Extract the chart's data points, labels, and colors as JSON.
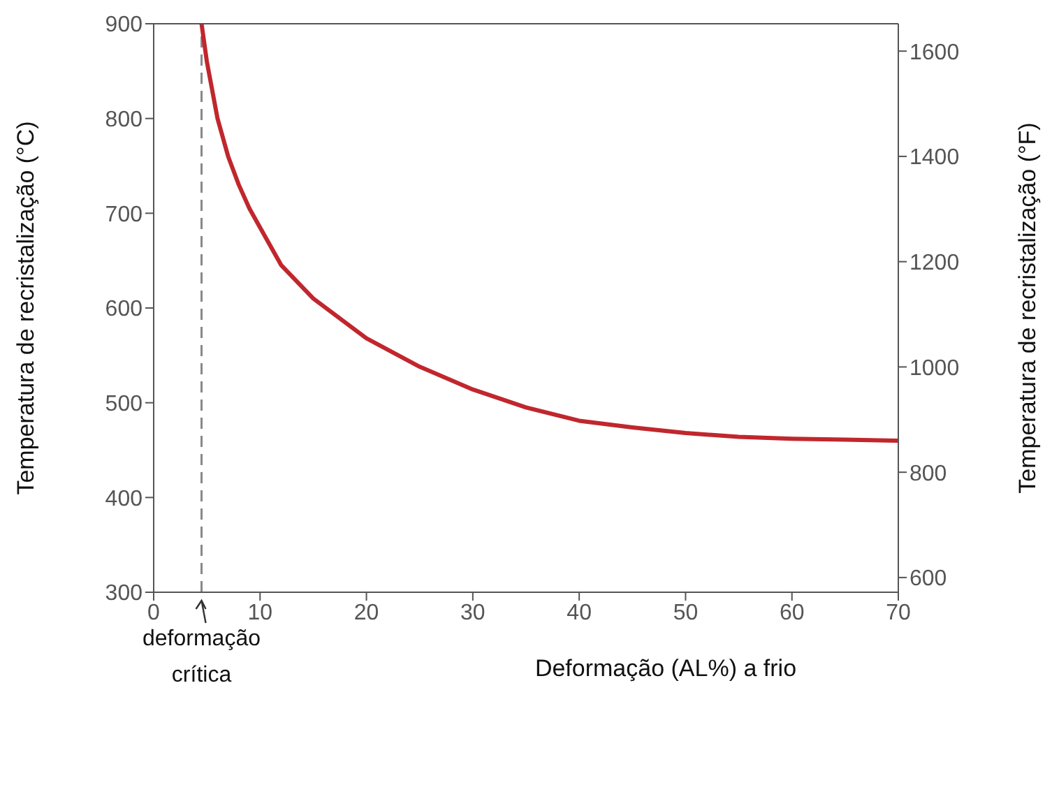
{
  "chart_data": {
    "type": "line",
    "xlabel": "Deformação (AL%) a frio",
    "ylabel": "Temperatura de recristalização (°C)",
    "y2label": "Temperatura de recristalização (°F)",
    "x": [
      4.5,
      5,
      6,
      7,
      8,
      9,
      10,
      12,
      15,
      20,
      25,
      30,
      35,
      40,
      45,
      50,
      55,
      60,
      65,
      70
    ],
    "series": [
      {
        "color": "#c0272d",
        "values": [
          900,
          860,
          800,
          760,
          730,
          705,
          685,
          645,
          610,
          568,
          538,
          514,
          495,
          481,
          474,
          468,
          464,
          462,
          461,
          460
        ]
      }
    ],
    "xlim": [
      0,
      70
    ],
    "xticks": [
      0,
      10,
      20,
      30,
      40,
      50,
      60,
      70
    ],
    "ylim": [
      300,
      900
    ],
    "yticks": [
      300,
      400,
      500,
      600,
      700,
      800,
      900
    ],
    "y2lim": [
      572,
      1652
    ],
    "y2ticks": [
      600,
      800,
      1000,
      1200,
      1400,
      1600
    ],
    "ref_lines": [
      {
        "axis": "x",
        "value": 4.5,
        "label": "deformação crítica",
        "color": "#888888",
        "line_style": "dashed"
      }
    ],
    "marker": "none",
    "line_style": "solid"
  }
}
